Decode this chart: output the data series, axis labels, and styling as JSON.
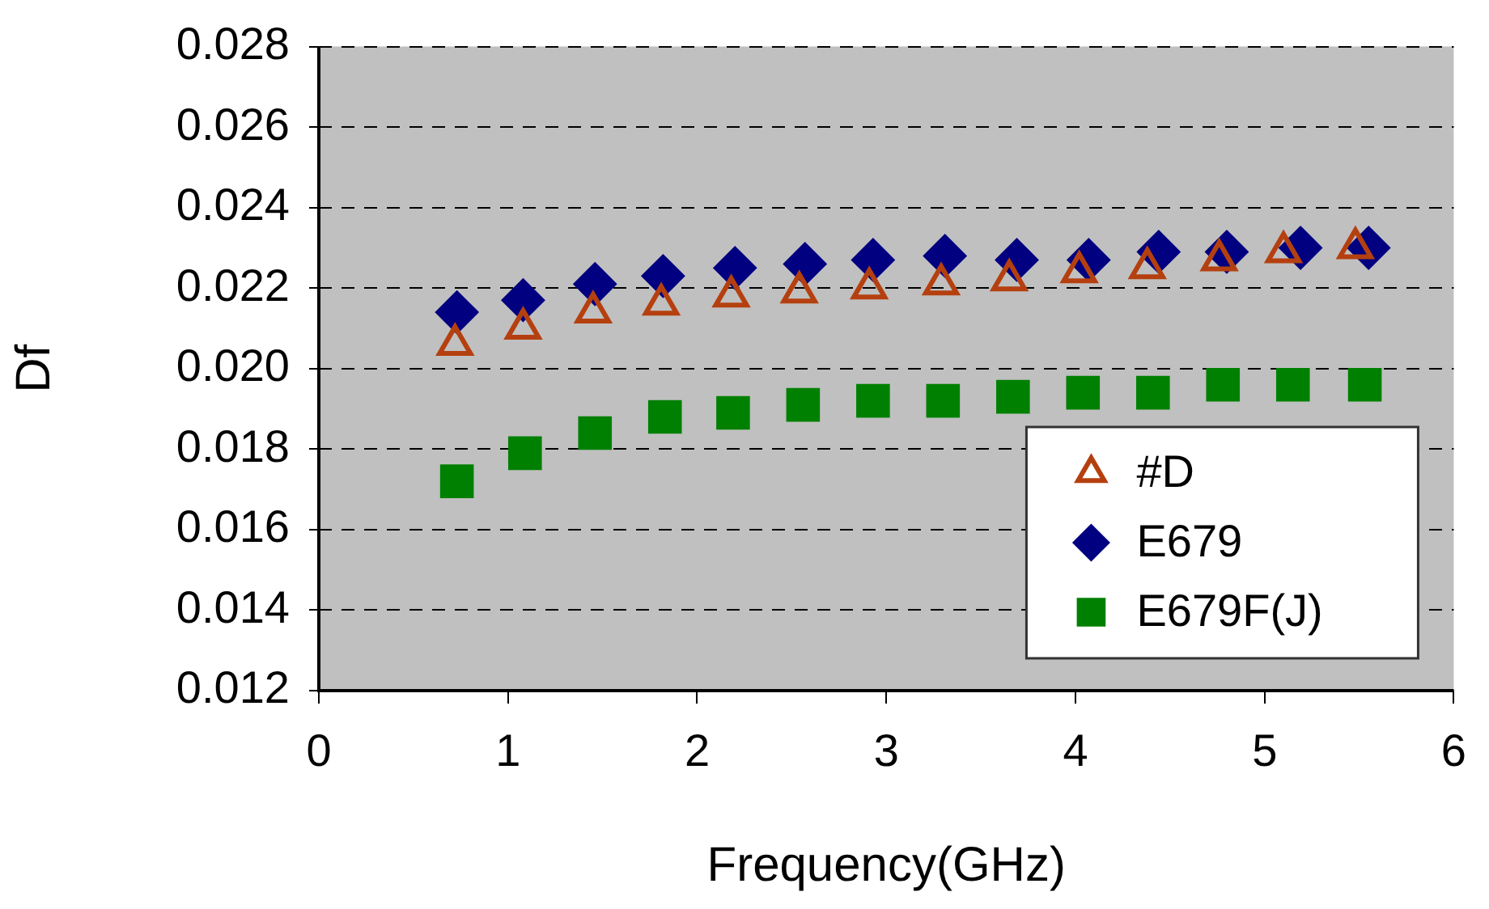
{
  "chart_data": {
    "type": "scatter",
    "xlabel": "Frequency(GHz)",
    "ylabel": "Df",
    "xlim": [
      0,
      6
    ],
    "xticks": [
      0,
      1,
      2,
      3,
      4,
      5,
      6
    ],
    "ylim": [
      0.012,
      0.028
    ],
    "yticks": [
      0.012,
      0.014,
      0.016,
      0.018,
      {
        "value": 0.02,
        "label": "0.020"
      },
      0.022,
      0.024,
      0.026,
      0.028
    ],
    "grid": "y",
    "legend": "bottom right",
    "series": [
      {
        "name": "#D",
        "color": "#b5400f",
        "marker": "triangle",
        "x": [
          0.72,
          1.08,
          1.45,
          1.81,
          2.18,
          2.54,
          2.91,
          3.29,
          3.65,
          4.02,
          4.38,
          4.76,
          5.1,
          5.48
        ],
        "values": [
          0.0206,
          0.021,
          0.0214,
          0.0216,
          0.0218,
          0.0219,
          0.022,
          0.0221,
          0.0222,
          0.0224,
          0.0225,
          0.0227,
          0.0229,
          0.023
        ]
      },
      {
        "name": "E679",
        "color": "#000080",
        "marker": "diamond",
        "x": [
          0.73,
          1.08,
          1.46,
          1.82,
          2.2,
          2.57,
          2.93,
          3.31,
          3.69,
          4.07,
          4.44,
          4.8,
          5.19,
          5.55
        ],
        "values": [
          0.0214,
          0.0217,
          0.0221,
          0.0223,
          0.0225,
          0.0226,
          0.0227,
          0.0228,
          0.0227,
          0.0227,
          0.0229,
          0.0229,
          0.023,
          0.023
        ]
      },
      {
        "name": "E679F(J)",
        "color": "#008000",
        "marker": "square",
        "x": [
          0.73,
          1.09,
          1.46,
          1.83,
          2.19,
          2.56,
          2.93,
          3.3,
          3.67,
          4.04,
          4.41,
          4.78,
          5.15,
          5.53
        ],
        "values": [
          0.0172,
          0.0179,
          0.0184,
          0.0188,
          0.0189,
          0.0191,
          0.0192,
          0.0192,
          0.0193,
          0.0194,
          0.0194,
          0.0196,
          0.0196,
          0.0196
        ]
      }
    ]
  }
}
